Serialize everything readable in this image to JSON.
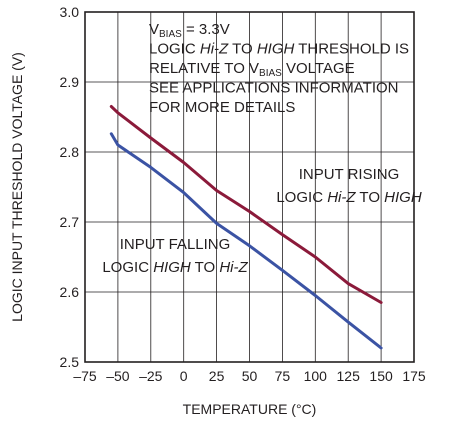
{
  "chart_data": {
    "type": "line",
    "xlabel": "TEMPERATURE (°C)",
    "ylabel": "LOGIC INPUT THRESHOLD VOLTAGE (V)",
    "xlim": [
      -75,
      175
    ],
    "ylim": [
      2.5,
      3.0
    ],
    "x_ticks": [
      -75,
      -50,
      -25,
      0,
      25,
      50,
      75,
      100,
      125,
      150,
      175
    ],
    "x_tick_labels": [
      "–75",
      "–50",
      "–25",
      "0",
      "25",
      "50",
      "75",
      "100",
      "125",
      "150",
      "175"
    ],
    "y_ticks": [
      2.5,
      2.6,
      2.7,
      2.8,
      2.9,
      3.0
    ],
    "y_tick_labels": [
      "2.5",
      "2.6",
      "2.7",
      "2.8",
      "2.9",
      "3.0"
    ],
    "grid": true,
    "annotation_lines": [
      [
        "V",
        "BIAS",
        " = 3.3V"
      ],
      [
        "LOGIC ",
        "Hi-Z",
        " TO ",
        "HIGH",
        " THRESHOLD IS"
      ],
      [
        "RELATIVE TO V",
        "BIAS",
        " VOLTAGE"
      ],
      [
        "SEE APPLICATIONS INFORMATION"
      ],
      [
        "FOR MORE DETAILS"
      ]
    ],
    "series": [
      {
        "label_lines": [
          [
            "INPUT RISING"
          ],
          [
            "LOGIC ",
            "Hi-Z",
            " TO ",
            "HIGH"
          ]
        ],
        "color": "#8b1a3a",
        "x": [
          -55,
          -50,
          -25,
          0,
          25,
          50,
          75,
          100,
          125,
          150
        ],
        "y": [
          2.865,
          2.856,
          2.82,
          2.785,
          2.745,
          2.715,
          2.682,
          2.65,
          2.612,
          2.585
        ]
      },
      {
        "label_lines": [
          [
            "INPUT FALLING"
          ],
          [
            "LOGIC ",
            "HIGH",
            " TO ",
            "Hi-Z"
          ]
        ],
        "color": "#3b53a4",
        "x": [
          -55,
          -50,
          -25,
          0,
          25,
          50,
          75,
          100,
          125,
          150
        ],
        "y": [
          2.826,
          2.81,
          2.778,
          2.742,
          2.698,
          2.666,
          2.631,
          2.595,
          2.557,
          2.52
        ]
      }
    ]
  }
}
